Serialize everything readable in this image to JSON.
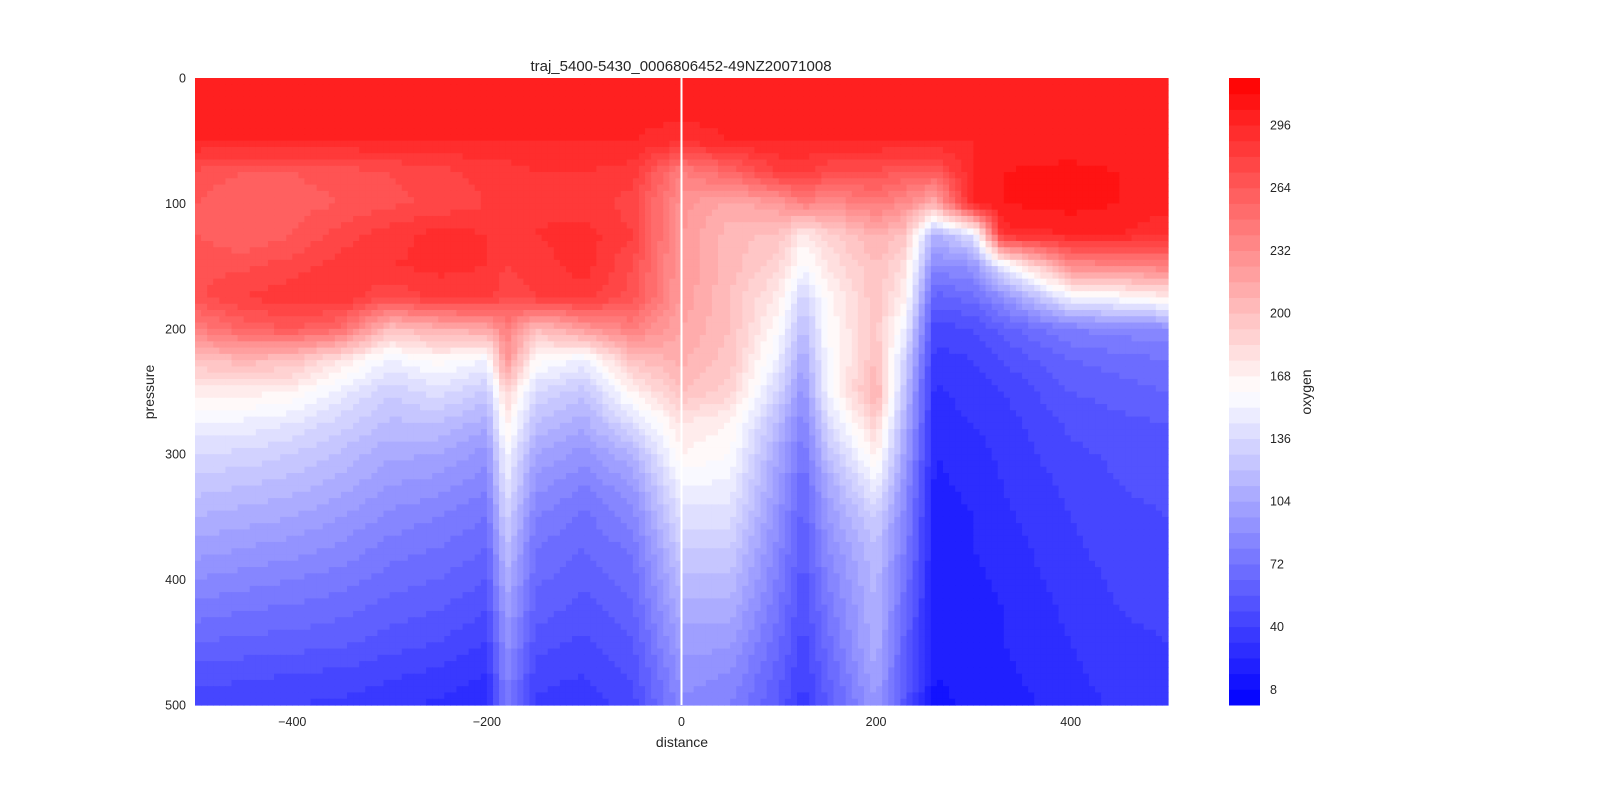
{
  "chart_data": {
    "type": "heatmap",
    "title": "traj_5400-5430_0006806452-49NZ20071008",
    "xlabel": "distance",
    "ylabel": "pressure",
    "xlim": [
      -500,
      500
    ],
    "ylim": [
      500,
      0
    ],
    "y_inverted": true,
    "x_ticks": [
      -400,
      -200,
      0,
      200,
      400
    ],
    "x_tick_labels": [
      "−400",
      "−200",
      "0",
      "200",
      "400"
    ],
    "y_ticks": [
      0,
      100,
      200,
      300,
      400,
      500
    ],
    "y_tick_labels": [
      "0",
      "100",
      "200",
      "300",
      "400",
      "500"
    ],
    "vertical_line_at_x": 0,
    "colormap": "bwr",
    "colors": {
      "low": "#0000ff",
      "mid": "#ffffff",
      "high": "#ff0000",
      "midline": "#ffffff",
      "panel_bg": "#eaeaf2"
    },
    "colorbar": {
      "label": "oxygen",
      "min": 0,
      "max": 320,
      "ticks": [
        8,
        40,
        72,
        104,
        136,
        168,
        200,
        232,
        264,
        296
      ],
      "tick_labels": [
        "8",
        "40",
        "72",
        "104",
        "136",
        "168",
        "200",
        "232",
        "264",
        "296"
      ],
      "levels": [
        0,
        8,
        16,
        24,
        32,
        40,
        48,
        56,
        64,
        72,
        80,
        88,
        96,
        104,
        112,
        120,
        128,
        136,
        144,
        152,
        160,
        168,
        176,
        184,
        192,
        200,
        208,
        216,
        224,
        232,
        240,
        248,
        256,
        264,
        272,
        280,
        288,
        296,
        304,
        312,
        320
      ]
    },
    "x": [
      -500,
      -450,
      -400,
      -350,
      -300,
      -250,
      -200,
      -180,
      -150,
      -100,
      -50,
      0,
      50,
      100,
      125,
      150,
      200,
      230,
      260,
      300,
      330,
      400,
      450,
      500
    ],
    "y": [
      0,
      25,
      50,
      75,
      100,
      125,
      150,
      175,
      200,
      225,
      250,
      275,
      300,
      325,
      350,
      375,
      400,
      425,
      450,
      475,
      500
    ],
    "z": [
      [
        300,
        300,
        300,
        300,
        300,
        300,
        300,
        300,
        300,
        300,
        300,
        300,
        300,
        300,
        300,
        300,
        300,
        300,
        300,
        300,
        300,
        300,
        300,
        300
      ],
      [
        300,
        300,
        300,
        300,
        300,
        300,
        300,
        300,
        300,
        300,
        300,
        300,
        300,
        300,
        300,
        300,
        300,
        300,
        300,
        300,
        300,
        300,
        300,
        300
      ],
      [
        296,
        296,
        296,
        296,
        296,
        296,
        296,
        296,
        296,
        296,
        296,
        290,
        296,
        296,
        296,
        296,
        296,
        296,
        296,
        296,
        300,
        300,
        300,
        300
      ],
      [
        270,
        264,
        264,
        268,
        272,
        276,
        284,
        284,
        288,
        288,
        284,
        240,
        256,
        280,
        284,
        272,
        270,
        264,
        264,
        296,
        304,
        306,
        304,
        304
      ],
      [
        264,
        256,
        260,
        264,
        270,
        274,
        280,
        280,
        286,
        284,
        276,
        228,
        212,
        224,
        240,
        232,
        244,
        232,
        210,
        300,
        304,
        308,
        304,
        300
      ],
      [
        264,
        256,
        264,
        276,
        284,
        292,
        288,
        284,
        288,
        292,
        280,
        224,
        204,
        198,
        172,
        188,
        210,
        198,
        110,
        140,
        292,
        296,
        296,
        288
      ],
      [
        270,
        270,
        276,
        284,
        288,
        290,
        288,
        280,
        284,
        292,
        272,
        224,
        204,
        186,
        156,
        176,
        200,
        180,
        84,
        92,
        148,
        232,
        236,
        240
      ],
      [
        270,
        280,
        286,
        288,
        272,
        284,
        284,
        272,
        280,
        284,
        268,
        222,
        200,
        172,
        132,
        164,
        198,
        168,
        60,
        68,
        88,
        152,
        160,
        172
      ],
      [
        240,
        258,
        264,
        252,
        200,
        210,
        216,
        240,
        200,
        224,
        240,
        216,
        200,
        160,
        116,
        160,
        196,
        150,
        44,
        48,
        60,
        80,
        84,
        88
      ],
      [
        200,
        204,
        200,
        176,
        150,
        164,
        152,
        228,
        164,
        150,
        200,
        210,
        196,
        148,
        104,
        156,
        200,
        132,
        36,
        40,
        48,
        64,
        68,
        72
      ],
      [
        170,
        172,
        168,
        148,
        130,
        140,
        126,
        188,
        136,
        124,
        168,
        200,
        188,
        132,
        92,
        152,
        212,
        120,
        30,
        36,
        40,
        56,
        60,
        64
      ],
      [
        150,
        150,
        144,
        132,
        118,
        120,
        108,
        172,
        120,
        108,
        140,
        176,
        168,
        116,
        80,
        136,
        190,
        110,
        28,
        32,
        36,
        50,
        54,
        56
      ],
      [
        136,
        134,
        128,
        118,
        106,
        104,
        92,
        156,
        104,
        92,
        112,
        168,
        160,
        104,
        72,
        120,
        170,
        100,
        24,
        28,
        34,
        46,
        50,
        52
      ],
      [
        124,
        120,
        116,
        108,
        96,
        92,
        82,
        144,
        92,
        80,
        96,
        152,
        150,
        96,
        64,
        104,
        150,
        90,
        22,
        26,
        32,
        42,
        48,
        50
      ],
      [
        112,
        108,
        104,
        96,
        86,
        80,
        72,
        132,
        80,
        70,
        84,
        140,
        140,
        90,
        60,
        96,
        130,
        84,
        20,
        24,
        30,
        40,
        46,
        48
      ],
      [
        100,
        96,
        92,
        86,
        76,
        72,
        64,
        120,
        72,
        64,
        74,
        128,
        128,
        84,
        56,
        88,
        120,
        78,
        20,
        24,
        28,
        38,
        44,
        46
      ],
      [
        88,
        84,
        80,
        76,
        68,
        64,
        56,
        110,
        66,
        58,
        68,
        118,
        118,
        78,
        52,
        80,
        116,
        72,
        18,
        22,
        26,
        36,
        42,
        44
      ],
      [
        76,
        72,
        70,
        66,
        60,
        56,
        48,
        100,
        60,
        52,
        62,
        108,
        108,
        72,
        48,
        74,
        112,
        66,
        18,
        20,
        24,
        34,
        40,
        42
      ],
      [
        64,
        62,
        60,
        58,
        52,
        48,
        40,
        92,
        52,
        46,
        56,
        100,
        98,
        66,
        44,
        68,
        110,
        60,
        16,
        20,
        24,
        32,
        38,
        40
      ],
      [
        52,
        50,
        48,
        46,
        42,
        38,
        32,
        84,
        44,
        40,
        50,
        92,
        88,
        60,
        40,
        62,
        104,
        56,
        16,
        18,
        22,
        30,
        36,
        38
      ],
      [
        44,
        42,
        40,
        38,
        34,
        30,
        26,
        78,
        38,
        34,
        44,
        86,
        80,
        54,
        36,
        56,
        96,
        52,
        14,
        18,
        20,
        28,
        34,
        36
      ]
    ]
  }
}
